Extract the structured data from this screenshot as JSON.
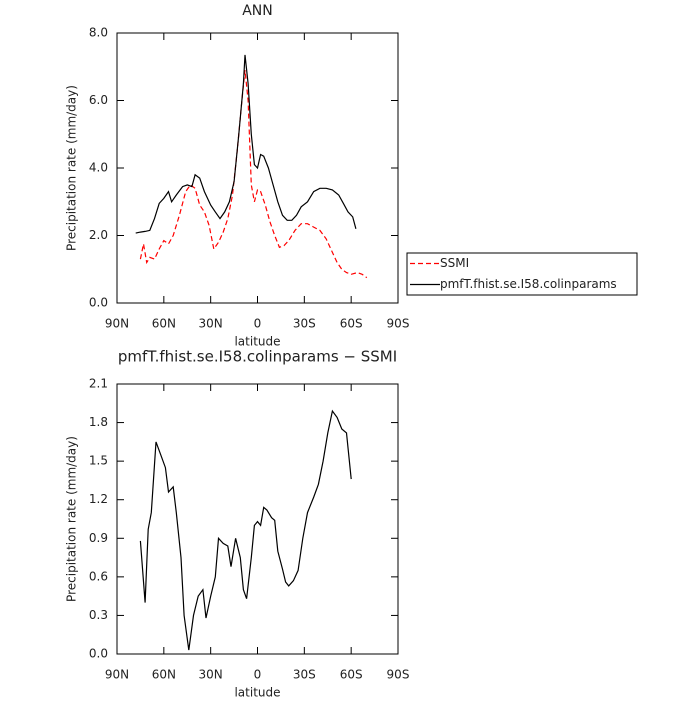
{
  "chart_data": [
    {
      "type": "line",
      "title": "ANN",
      "x_label": "latitude",
      "y_label": "Precipitation rate (mm/day)",
      "xlim": [
        90,
        -90
      ],
      "xticks": [
        {
          "value": 90,
          "label": "90N"
        },
        {
          "value": 60,
          "label": "60N"
        },
        {
          "value": 30,
          "label": "30N"
        },
        0,
        {
          "value": -30,
          "label": "30S"
        },
        {
          "value": -60,
          "label": "60S"
        },
        {
          "value": -90,
          "label": "90S"
        }
      ],
      "ylim": [
        0,
        8
      ],
      "yticks": [
        {
          "value": 0,
          "label": "0.0"
        },
        {
          "value": 2,
          "label": "2.0"
        },
        {
          "value": 4,
          "label": "4.0"
        },
        {
          "value": 6,
          "label": "6.0"
        },
        {
          "value": 8,
          "label": "8.0"
        }
      ],
      "series": [
        {
          "name": "SSMI",
          "color": "#ff0000",
          "line_style": "dashed",
          "x": [
            75,
            73,
            71,
            69,
            66,
            63,
            60,
            57,
            54,
            50,
            46,
            43,
            40,
            37,
            34,
            31,
            28,
            25,
            22,
            19,
            16,
            13,
            10,
            8,
            6,
            4,
            2,
            0,
            -2,
            -5,
            -8,
            -11,
            -14,
            -17,
            -20,
            -24,
            -28,
            -32,
            -36,
            -40,
            -44,
            -48,
            -51,
            -54,
            -57,
            -60,
            -64,
            -67,
            -70
          ],
          "values": [
            1.3,
            1.75,
            1.2,
            1.35,
            1.3,
            1.6,
            1.85,
            1.75,
            2.0,
            2.6,
            3.3,
            3.5,
            3.4,
            2.9,
            2.7,
            2.3,
            1.6,
            1.8,
            2.1,
            2.5,
            3.2,
            4.5,
            6.0,
            6.9,
            6.0,
            3.5,
            3.0,
            3.35,
            3.3,
            2.9,
            2.4,
            2.0,
            1.65,
            1.7,
            1.85,
            2.15,
            2.35,
            2.35,
            2.25,
            2.15,
            1.9,
            1.5,
            1.2,
            1.0,
            0.9,
            0.85,
            0.9,
            0.85,
            0.75
          ]
        },
        {
          "name": "pmfT.fhist.se.I58.colinparams",
          "color": "#000000",
          "line_style": "solid",
          "x": [
            78,
            75,
            72,
            69,
            66,
            63,
            60,
            57,
            55,
            52,
            48,
            45,
            42,
            40,
            37,
            34,
            30,
            27,
            24,
            21,
            18,
            15,
            12,
            9,
            8,
            6,
            4,
            2,
            0,
            -2,
            -4,
            -7,
            -10,
            -13,
            -16,
            -19,
            -22,
            -25,
            -28,
            -32,
            -36,
            -40,
            -44,
            -48,
            -52,
            -55,
            -58,
            -61,
            -63
          ],
          "values": [
            2.07,
            2.1,
            2.12,
            2.15,
            2.5,
            2.95,
            3.1,
            3.3,
            3.0,
            3.2,
            3.45,
            3.5,
            3.45,
            3.8,
            3.7,
            3.3,
            2.9,
            2.7,
            2.5,
            2.7,
            3.0,
            3.6,
            5.0,
            6.5,
            7.35,
            6.5,
            5.0,
            4.1,
            4.0,
            4.4,
            4.35,
            4.0,
            3.5,
            3.0,
            2.6,
            2.45,
            2.45,
            2.6,
            2.85,
            3.0,
            3.3,
            3.4,
            3.4,
            3.35,
            3.2,
            2.95,
            2.7,
            2.55,
            2.2
          ]
        }
      ]
    },
    {
      "type": "line",
      "title": "pmfT.fhist.se.I58.colinparams − SSMI",
      "x_label": "latitude",
      "y_label": "Precipitation rate (mm/day)",
      "xlim": [
        90,
        -90
      ],
      "xticks": [
        {
          "value": 90,
          "label": "90N"
        },
        {
          "value": 60,
          "label": "60N"
        },
        {
          "value": 30,
          "label": "30N"
        },
        0,
        {
          "value": -30,
          "label": "30S"
        },
        {
          "value": -60,
          "label": "60S"
        },
        {
          "value": -90,
          "label": "90S"
        }
      ],
      "ylim": [
        0,
        2.1
      ],
      "yticks": [
        {
          "value": 0,
          "label": "0.0"
        },
        {
          "value": 0.3,
          "label": "0.3"
        },
        {
          "value": 0.6,
          "label": "0.6"
        },
        {
          "value": 0.9,
          "label": "0.9"
        },
        {
          "value": 1.2,
          "label": "1.2"
        },
        {
          "value": 1.5,
          "label": "1.5"
        },
        {
          "value": 1.8,
          "label": "1.8"
        },
        {
          "value": 2.1,
          "label": "2.1"
        }
      ],
      "series": [
        {
          "color": "#000000",
          "line_style": "solid",
          "x": [
            75,
            72,
            70,
            68,
            65,
            62,
            59,
            57,
            54,
            52,
            49,
            47,
            44,
            41,
            38,
            35,
            33,
            30,
            27,
            25,
            22,
            19,
            17,
            14,
            11,
            9,
            7,
            4,
            2,
            0,
            -2,
            -4,
            -6,
            -9,
            -11,
            -13,
            -16,
            -18,
            -20,
            -23,
            -26,
            -29,
            -32,
            -36,
            -39,
            -42,
            -45,
            -48,
            -51,
            -54,
            -57,
            -60
          ],
          "values": [
            0.88,
            0.4,
            0.97,
            1.1,
            1.65,
            1.55,
            1.45,
            1.26,
            1.3,
            1.1,
            0.75,
            0.3,
            0.03,
            0.3,
            0.45,
            0.5,
            0.28,
            0.45,
            0.6,
            0.9,
            0.86,
            0.84,
            0.68,
            0.9,
            0.75,
            0.5,
            0.43,
            0.75,
            1.0,
            1.03,
            1.0,
            1.14,
            1.12,
            1.06,
            1.04,
            0.8,
            0.66,
            0.56,
            0.53,
            0.57,
            0.65,
            0.9,
            1.1,
            1.22,
            1.32,
            1.5,
            1.72,
            1.89,
            1.84,
            1.75,
            1.72,
            1.36
          ]
        }
      ]
    }
  ]
}
